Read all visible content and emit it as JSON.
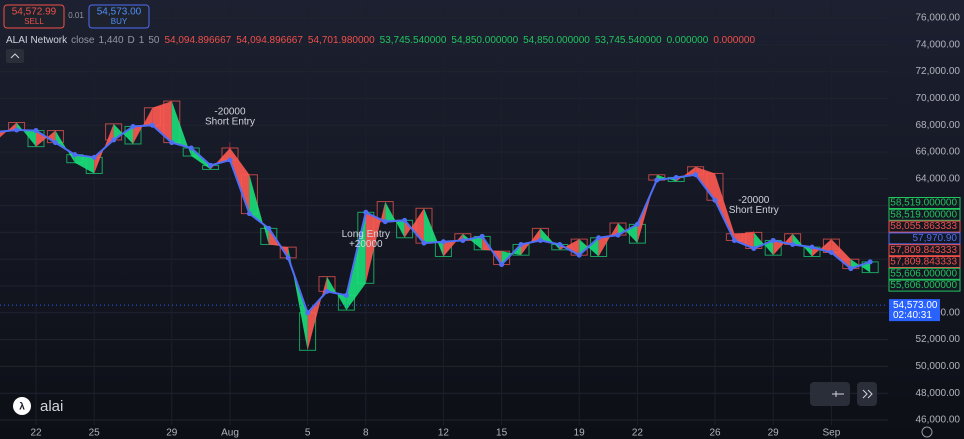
{
  "trade_panel": {
    "sell_price": "54,572.99",
    "sell_label": "SELL",
    "spread": "0.01",
    "buy_price": "54,573.00",
    "buy_label": "BUY"
  },
  "legend": {
    "symbol": "ALAI Network",
    "params": [
      "close",
      "1,440",
      "D",
      "1",
      "50"
    ],
    "values": [
      {
        "text": "54,094.896667",
        "color": "#f0504a"
      },
      {
        "text": "54,094.896667",
        "color": "#f0504a"
      },
      {
        "text": "54,701.980000",
        "color": "#f0504a"
      },
      {
        "text": "53,745.540000",
        "color": "#22c55e"
      },
      {
        "text": "54,850.000000",
        "color": "#22c55e"
      },
      {
        "text": "54,850.000000",
        "color": "#22c55e"
      },
      {
        "text": "53,745.540000",
        "color": "#22c55e"
      },
      {
        "text": "0.000000",
        "color": "#22c55e"
      },
      {
        "text": "0.000000",
        "color": "#f0504a"
      }
    ]
  },
  "logo": "alai",
  "chart_data": {
    "type": "line",
    "categories": [
      null,
      null,
      "22",
      null,
      null,
      "25",
      null,
      null,
      null,
      "29",
      null,
      null,
      "Aug",
      null,
      null,
      null,
      "5",
      null,
      null,
      "8",
      null,
      null,
      null,
      "12",
      null,
      null,
      "15",
      null,
      null,
      null,
      "19",
      null,
      null,
      "22",
      null,
      null,
      null,
      "26",
      null,
      null,
      "29",
      null,
      null,
      "Sep",
      null,
      null
    ],
    "series": [
      {
        "color": "#4f6ef7",
        "values": [
          67500,
          67640,
          67600,
          66700,
          65800,
          65600,
          66900,
          67900,
          68000,
          66700,
          66300,
          65000,
          65400,
          61400,
          60300,
          58100,
          54000,
          55600,
          55300,
          61500,
          60800,
          60900,
          59200,
          59300,
          59400,
          59700,
          57600,
          59100,
          59400,
          59100,
          58300,
          59600,
          59800,
          60600,
          63900,
          64100,
          64300,
          62400,
          59400,
          58800,
          59400,
          59100,
          58900,
          58500,
          57300,
          57800
        ]
      },
      {
        "color": "#888888",
        "values": [
          66900,
          68200,
          66400,
          67600,
          65200,
          64400,
          68100,
          66600,
          69300,
          69800,
          65700,
          64700,
          66300,
          64300,
          59100,
          58900,
          51200,
          56700,
          54200,
          56200,
          62300,
          59600,
          61800,
          58200,
          59900,
          58700,
          58600,
          58300,
          60300,
          58700,
          59500,
          58200,
          60700,
          59200,
          64300,
          63800,
          64900,
          64400,
          59900,
          60000,
          58300,
          59900,
          58200,
          59500,
          58000,
          57000
        ]
      }
    ],
    "ylim": [
      46000,
      76000
    ],
    "yticks": [
      {
        "value": 46000,
        "label": "46,000.00"
      },
      {
        "value": 48000,
        "label": "48,000.00"
      },
      {
        "value": 50000,
        "label": "50,000.00"
      },
      {
        "value": 52000,
        "label": "52,000.00"
      },
      {
        "value": 54000,
        "label": "54,000.00"
      },
      {
        "value": 56000,
        "label": "56,000.00"
      },
      {
        "value": 58000,
        "label": "58,000.00"
      },
      {
        "value": 60000,
        "label": "60,000.00"
      },
      {
        "value": 62000,
        "label": "62,000.00"
      },
      {
        "value": 64000,
        "label": "64,000.00"
      },
      {
        "value": 66000,
        "label": "66,000.00"
      },
      {
        "value": 68000,
        "label": "68,000.00"
      },
      {
        "value": 70000,
        "label": "70,000.00"
      },
      {
        "value": 72000,
        "label": "72,000.00"
      },
      {
        "value": 74000,
        "label": "74,000.00"
      },
      {
        "value": 76000,
        "label": "76,000.00"
      }
    ],
    "up_color": "#19e07a",
    "down_color": "#ff5a52",
    "annotations": [
      {
        "index": 12,
        "lines": [
          "-20000",
          "Short Entry"
        ],
        "side": "above",
        "color": "#ff3344"
      },
      {
        "index": 19,
        "lines": [
          "Long Entry",
          "+20000"
        ],
        "side": "below",
        "color": "#4f8ef7"
      },
      {
        "index": 39,
        "lines": [
          "-20000",
          "Short Entry"
        ],
        "side": "above",
        "color": "#ff3344"
      }
    ],
    "price_tags": [
      {
        "label": "58,519.000000",
        "color": "#22c55e"
      },
      {
        "label": "58,519.000000",
        "color": "#22c55e"
      },
      {
        "label": "58,055.863333",
        "color": "#f0504a"
      },
      {
        "label": "57,970.90",
        "color": "#4f6ef7"
      },
      {
        "label": "57,809.843333",
        "color": "#f0504a"
      },
      {
        "label": "57,809.843333",
        "color": "#f0504a"
      },
      {
        "label": "55,606.000000",
        "color": "#22c55e"
      },
      {
        "label": "55,606.000000",
        "color": "#22c55e"
      }
    ],
    "last_price": {
      "value": 54573,
      "label": "54,573.00",
      "countdown": "02:40:31",
      "color": "#2962ff"
    }
  }
}
